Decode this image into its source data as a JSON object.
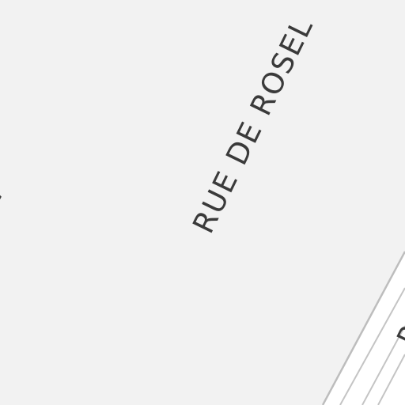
{
  "map": {
    "background_color": "#f2f2f2",
    "label_color": "#3a3a3a",
    "road_edge_color": "#bdbdbd",
    "labels": {
      "rue_de_rosel": "RUE DE ROSEL",
      "jesus_street": "ÉSUS",
      "right_street": "R"
    }
  }
}
